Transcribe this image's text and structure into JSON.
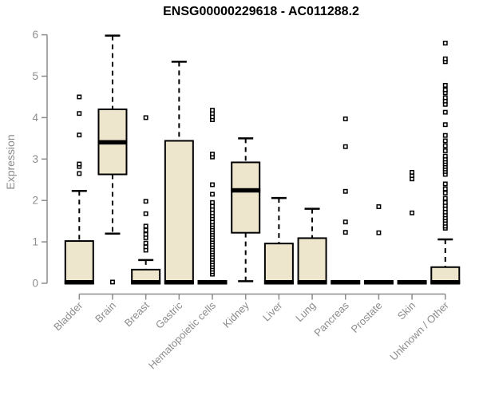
{
  "title": "ENSG00000229618 - AC011288.2",
  "colors": {
    "box_fill": "#EDE6CC",
    "box_stroke": "#000000",
    "median": "#000000",
    "whisker": "#000000",
    "outlier_stroke": "#000000",
    "outlier_fill": "#FFFFFF",
    "axis": "#8C8C8C",
    "title": "#000000"
  },
  "chart_data": {
    "type": "boxplot",
    "title": "ENSG00000229618 - AC011288.2",
    "xlabel": "",
    "ylabel": "Expression",
    "ylim": [
      0,
      6
    ],
    "yticks": [
      0,
      1,
      2,
      3,
      4,
      5,
      6
    ],
    "grid": false,
    "legend": "none",
    "categories": [
      "Bladder",
      "Brain",
      "Breast",
      "Gastric",
      "Hematopoietic cells",
      "Kidney",
      "Liver",
      "Lung",
      "Pancreas",
      "Prostate",
      "Skin",
      "Unknown / Other"
    ],
    "series": [
      {
        "name": "Bladder",
        "min": 0,
        "q1": 0,
        "median": 0,
        "q3": 1.02,
        "max": 2.23,
        "outliers": [
          2.65,
          2.82,
          2.88,
          3.58,
          4.1,
          4.5
        ]
      },
      {
        "name": "Brain",
        "min": 1.2,
        "q1": 2.63,
        "median": 3.38,
        "q3": 4.2,
        "max": 5.98,
        "outliers": [
          0.03
        ]
      },
      {
        "name": "Breast",
        "min": 0,
        "q1": 0,
        "median": 0,
        "q3": 0.33,
        "max": 0.56,
        "outliers": [
          0.8,
          0.88,
          0.97,
          1.1,
          1.18,
          1.28,
          1.38,
          1.68,
          1.98,
          4.0
        ]
      },
      {
        "name": "Gastric",
        "min": 0,
        "q1": 0,
        "median": 0,
        "q3": 3.44,
        "max": 5.35,
        "outliers": []
      },
      {
        "name": "Hematopoietic cells",
        "min": 0,
        "q1": 0,
        "median": 0,
        "q3": 0,
        "max": 0,
        "outliers": [
          0.22,
          0.28,
          0.34,
          0.4,
          0.46,
          0.52,
          0.58,
          0.64,
          0.7,
          0.76,
          0.82,
          0.88,
          0.94,
          1.0,
          1.06,
          1.12,
          1.18,
          1.24,
          1.3,
          1.36,
          1.42,
          1.48,
          1.56,
          1.63,
          1.7,
          1.78,
          1.86,
          1.95,
          2.15,
          2.38,
          3.05,
          3.12,
          3.95,
          4.02,
          4.1,
          4.18
        ]
      },
      {
        "name": "Kidney",
        "min": 0.05,
        "q1": 1.22,
        "median": 2.22,
        "q3": 2.92,
        "max": 3.5,
        "outliers": []
      },
      {
        "name": "Liver",
        "min": 0,
        "q1": 0,
        "median": 0,
        "q3": 0.96,
        "max": 2.06,
        "outliers": []
      },
      {
        "name": "Lung",
        "min": 0,
        "q1": 0,
        "median": 0,
        "q3": 1.09,
        "max": 1.8,
        "outliers": []
      },
      {
        "name": "Pancreas",
        "min": 0,
        "q1": 0,
        "median": 0,
        "q3": 0,
        "max": 0,
        "outliers": [
          1.23,
          1.48,
          2.22,
          3.3,
          3.97
        ]
      },
      {
        "name": "Prostate",
        "min": 0,
        "q1": 0,
        "median": 0,
        "q3": 0,
        "max": 0,
        "outliers": [
          1.22,
          1.85
        ]
      },
      {
        "name": "Skin",
        "min": 0,
        "q1": 0,
        "median": 0,
        "q3": 0,
        "max": 0,
        "outliers": [
          1.7,
          2.52,
          2.6,
          2.68
        ]
      },
      {
        "name": "Unknown / Other",
        "min": 0,
        "q1": 0,
        "median": 0,
        "q3": 0.39,
        "max": 1.06,
        "outliers": [
          1.33,
          1.38,
          1.45,
          1.52,
          1.58,
          1.65,
          1.72,
          1.8,
          1.88,
          1.95,
          2.05,
          2.18,
          2.28,
          2.4,
          2.63,
          2.7,
          2.76,
          2.82,
          2.88,
          2.94,
          3.0,
          3.07,
          3.2,
          3.32,
          3.44,
          3.57,
          3.83,
          4.13,
          4.32,
          4.4,
          4.48,
          4.6,
          4.67,
          4.78,
          5.35,
          5.42,
          5.8
        ]
      }
    ]
  }
}
